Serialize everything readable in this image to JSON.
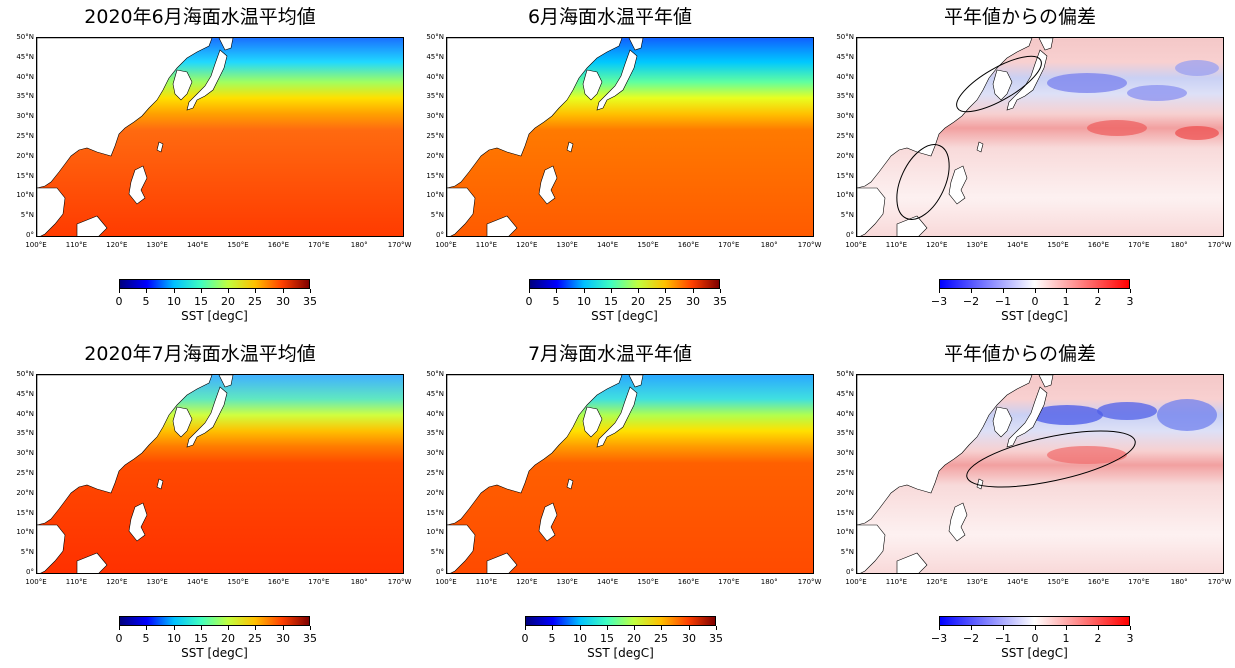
{
  "panels": [
    {
      "id": "p1",
      "title": "2020年6月海面水温平均値",
      "kind": "sst",
      "month": "jun",
      "year": "2020"
    },
    {
      "id": "p2",
      "title": "6月海面水温平年値",
      "kind": "clim",
      "month": "jun"
    },
    {
      "id": "p3",
      "title": "平年値からの偏差",
      "kind": "anom",
      "month": "jun"
    },
    {
      "id": "p4",
      "title": "2020年7月海面水温平均値",
      "kind": "sst",
      "month": "jul",
      "year": "2020"
    },
    {
      "id": "p5",
      "title": "7月海面水温平年値",
      "kind": "clim",
      "month": "jul"
    },
    {
      "id": "p6",
      "title": "平年値からの偏差",
      "kind": "anom",
      "month": "jul"
    }
  ],
  "latitude_ticks": [
    "50°N",
    "45°N",
    "40°N",
    "35°N",
    "30°N",
    "25°N",
    "20°N",
    "15°N",
    "10°N",
    "5°N",
    "0°"
  ],
  "longitude_ticks": [
    "100°E",
    "110°E",
    "120°E",
    "130°E",
    "140°E",
    "150°E",
    "160°E",
    "170°E",
    "180°",
    "170°W"
  ],
  "colorbar_sst": {
    "ticks": [
      "0",
      "5",
      "10",
      "15",
      "20",
      "25",
      "30",
      "35"
    ],
    "label": "SST [degC]",
    "colormap": "jet"
  },
  "colorbar_anom": {
    "ticks": [
      "−3",
      "−2",
      "−1",
      "0",
      "1",
      "2",
      "3"
    ],
    "label": "SST [degC]",
    "colormap": "bwr"
  },
  "annotations": {
    "jun_anom": [
      "ellipse around Yellow Sea / Japan",
      "ellipse around South China Sea"
    ],
    "jul_anom": [
      "ellipse south of Japan"
    ]
  },
  "colors": {
    "land": "#ffffff",
    "coast": "#000000"
  }
}
